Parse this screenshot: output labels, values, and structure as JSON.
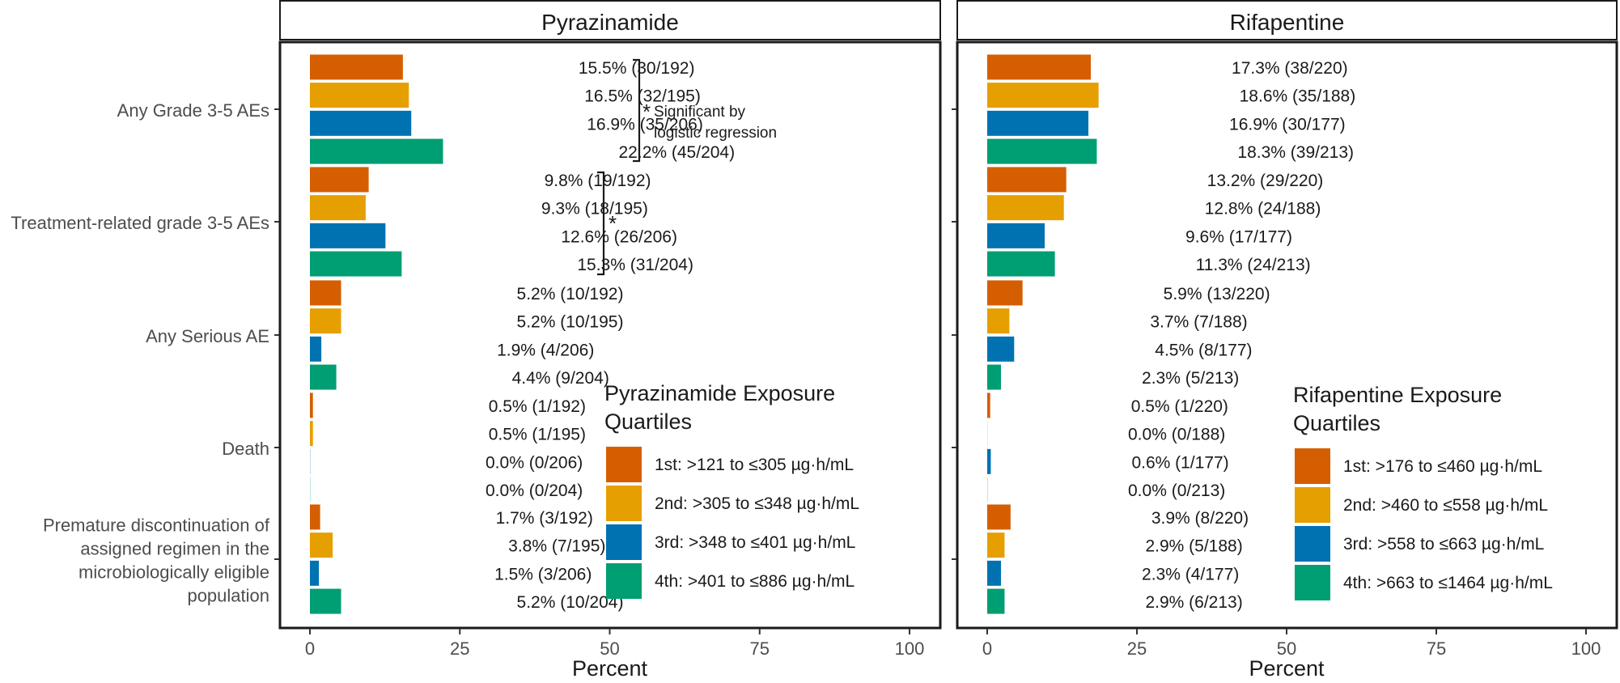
{
  "chart_data": {
    "type": "bar",
    "orientation": "horizontal",
    "xlabel": "Percent",
    "xlim": [
      0,
      100
    ],
    "xticks": [
      "0",
      "25",
      "50",
      "75",
      "100"
    ],
    "categories": [
      {
        "label": [
          "Any Grade 3-5 AEs"
        ]
      },
      {
        "label": [
          "Treatment-related grade 3-5 AEs"
        ]
      },
      {
        "label": [
          "Any Serious AE"
        ]
      },
      {
        "label": [
          "Death"
        ]
      },
      {
        "label": [
          "Premature discontinuation of",
          "assigned regimen in the",
          "microbiologically eligible",
          "population"
        ]
      }
    ],
    "quartile_colors": [
      "#D55E00",
      "#E69F00",
      "#0072B2",
      "#009E73"
    ],
    "panels": [
      {
        "title": "Pyrazinamide",
        "legend_title": [
          "Pyrazinamide Exposure",
          "Quartiles"
        ],
        "legend_items": [
          "1st: >121 to ≤305 µg·h/mL",
          "2nd: >305 to ≤348 µg·h/mL",
          "3rd: >348 to ≤401 µg·h/mL",
          "4th: >401 to ≤886 µg·h/mL"
        ],
        "annotations": {
          "significance_star": "*",
          "significance_note": [
            "Significant by",
            "logistic regression"
          ]
        },
        "groups": [
          {
            "values": [
              15.5,
              16.5,
              16.9,
              22.2
            ],
            "labels": [
              "15.5% (30/192)",
              "16.5% (32/195)",
              "16.9% (35/206)",
              "22.2% (45/204)"
            ]
          },
          {
            "values": [
              9.8,
              9.3,
              12.6,
              15.3
            ],
            "labels": [
              "9.8% (19/192)",
              "9.3% (18/195)",
              "12.6% (26/206)",
              "15.3% (31/204)"
            ]
          },
          {
            "values": [
              5.2,
              5.2,
              1.9,
              4.4
            ],
            "labels": [
              "5.2% (10/192)",
              "5.2% (10/195)",
              "1.9% (4/206)",
              "4.4% (9/204)"
            ]
          },
          {
            "values": [
              0.5,
              0.5,
              0.0,
              0.0
            ],
            "labels": [
              "0.5% (1/192)",
              "0.5% (1/195)",
              "0.0% (0/206)",
              "0.0% (0/204)"
            ]
          },
          {
            "values": [
              1.7,
              3.8,
              1.5,
              5.2
            ],
            "labels": [
              "1.7% (3/192)",
              "3.8% (7/195)",
              "1.5% (3/206)",
              "5.2% (10/204)"
            ]
          }
        ]
      },
      {
        "title": "Rifapentine",
        "legend_title": [
          "Rifapentine Exposure",
          "Quartiles"
        ],
        "legend_items": [
          "1st: >176 to ≤460 µg·h/mL",
          "2nd: >460 to ≤558 µg·h/mL",
          "3rd: >558 to ≤663 µg·h/mL",
          "4th: >663 to ≤1464 µg·h/mL"
        ],
        "groups": [
          {
            "values": [
              17.3,
              18.6,
              16.9,
              18.3
            ],
            "labels": [
              "17.3% (38/220)",
              "18.6% (35/188)",
              "16.9% (30/177)",
              "18.3% (39/213)"
            ]
          },
          {
            "values": [
              13.2,
              12.8,
              9.6,
              11.3
            ],
            "labels": [
              "13.2% (29/220)",
              "12.8% (24/188)",
              "9.6% (17/177)",
              "11.3% (24/213)"
            ]
          },
          {
            "values": [
              5.9,
              3.7,
              4.5,
              2.3
            ],
            "labels": [
              "5.9% (13/220)",
              "3.7% (7/188)",
              "4.5% (8/177)",
              "2.3% (5/213)"
            ]
          },
          {
            "values": [
              0.5,
              0.0,
              0.6,
              0.0
            ],
            "labels": [
              "0.5% (1/220)",
              "0.0% (0/188)",
              "0.6% (1/177)",
              "0.0% (0/213)"
            ]
          },
          {
            "values": [
              3.9,
              2.9,
              2.3,
              2.9
            ],
            "labels": [
              "3.9% (8/220)",
              "2.9% (5/188)",
              "2.3% (4/177)",
              "2.9% (6/213)"
            ]
          }
        ]
      }
    ]
  }
}
